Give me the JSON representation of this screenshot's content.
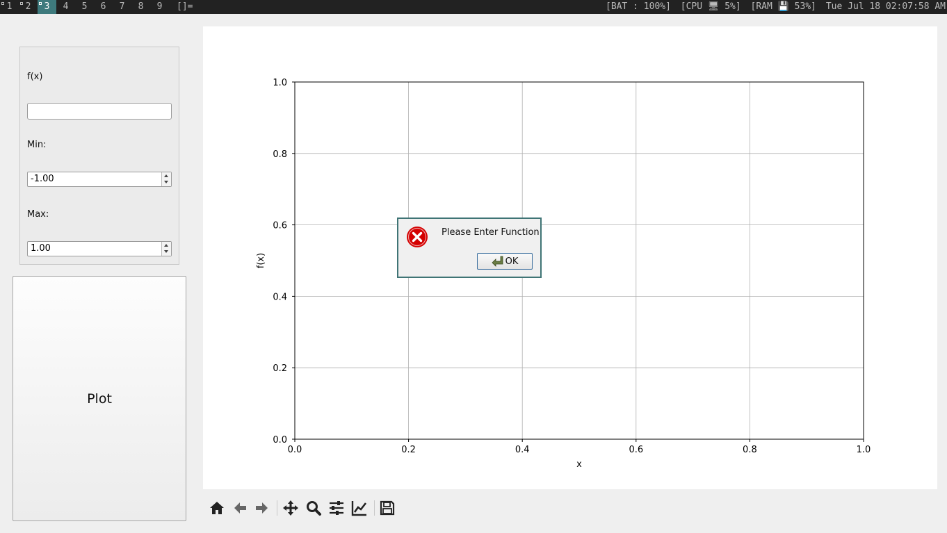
{
  "topbar": {
    "workspaces": [
      "1",
      "2",
      "3",
      "4",
      "5",
      "6",
      "7",
      "8",
      "9"
    ],
    "active_workspace": "3",
    "layout_symbol": "[]=",
    "battery": "[BAT : 100%]",
    "cpu": "[CPU 🖥 5%]",
    "ram": "[RAM 💾 53%]",
    "clock": "Tue Jul 18 02:07:58 AM"
  },
  "controls": {
    "function_label": "f(x)",
    "function_value": "",
    "min_label": "Min:",
    "min_value": "-1.00",
    "max_label": "Max:",
    "max_value": "1.00",
    "plot_button": "Plot"
  },
  "toolbar": {
    "icons": [
      "home-icon",
      "back-arrow-icon",
      "forward-arrow-icon",
      "pan-icon",
      "zoom-icon",
      "configure-subplots-icon",
      "edit-axes-icon",
      "save-icon"
    ]
  },
  "dialog": {
    "message": "Please Enter Function",
    "ok_label": "OK",
    "icon": "error-icon"
  },
  "chart_data": {
    "type": "line",
    "series": [],
    "xlabel": "x",
    "ylabel": "f(x)",
    "xlim": [
      0.0,
      1.0
    ],
    "ylim": [
      0.0,
      1.0
    ],
    "x_ticks": [
      "0.0",
      "0.2",
      "0.4",
      "0.6",
      "0.8",
      "1.0"
    ],
    "y_ticks": [
      "0.0",
      "0.2",
      "0.4",
      "0.6",
      "0.8",
      "1.0"
    ],
    "grid": true
  }
}
